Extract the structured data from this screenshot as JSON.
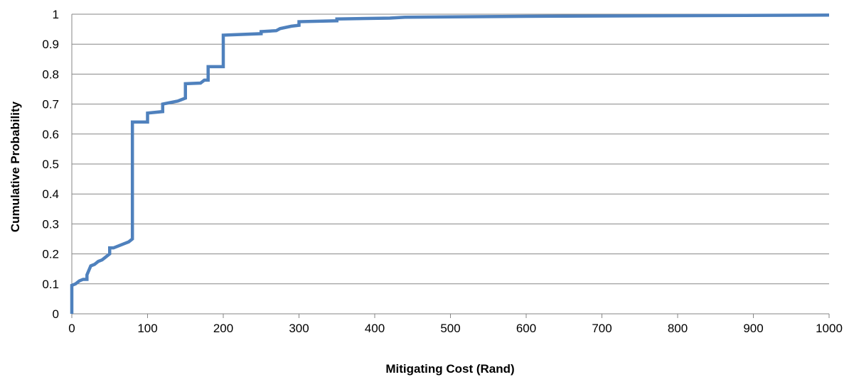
{
  "chart_data": {
    "type": "line",
    "step": true,
    "title": "",
    "xlabel": "Mitigating Cost (Rand)",
    "ylabel": "Cumulative Probability",
    "xlim": [
      0,
      1000
    ],
    "ylim": [
      0,
      1
    ],
    "x_ticks": [
      "0",
      "100",
      "200",
      "300",
      "400",
      "500",
      "600",
      "700",
      "800",
      "900",
      "1000"
    ],
    "y_ticks": [
      "0",
      "0.1",
      "0.2",
      "0.3",
      "0.4",
      "0.5",
      "0.6",
      "0.7",
      "0.8",
      "0.9",
      "1"
    ],
    "grid": "horizontal",
    "legend": "none",
    "series": [
      {
        "color": "#4f81bd",
        "points": [
          [
            0,
            0
          ],
          [
            0,
            0.095
          ],
          [
            5,
            0.1
          ],
          [
            10,
            0.11
          ],
          [
            15,
            0.115
          ],
          [
            20,
            0.115
          ],
          [
            20,
            0.13
          ],
          [
            25,
            0.16
          ],
          [
            30,
            0.165
          ],
          [
            35,
            0.175
          ],
          [
            40,
            0.18
          ],
          [
            45,
            0.19
          ],
          [
            50,
            0.2
          ],
          [
            50,
            0.22
          ],
          [
            55,
            0.22
          ],
          [
            60,
            0.225
          ],
          [
            65,
            0.23
          ],
          [
            70,
            0.235
          ],
          [
            75,
            0.24
          ],
          [
            80,
            0.25
          ],
          [
            80,
            0.64
          ],
          [
            100,
            0.64
          ],
          [
            100,
            0.67
          ],
          [
            120,
            0.675
          ],
          [
            120,
            0.7
          ],
          [
            140,
            0.71
          ],
          [
            145,
            0.715
          ],
          [
            150,
            0.72
          ],
          [
            150,
            0.768
          ],
          [
            170,
            0.77
          ],
          [
            175,
            0.78
          ],
          [
            180,
            0.78
          ],
          [
            180,
            0.825
          ],
          [
            200,
            0.825
          ],
          [
            200,
            0.93
          ],
          [
            250,
            0.935
          ],
          [
            250,
            0.942
          ],
          [
            270,
            0.945
          ],
          [
            275,
            0.952
          ],
          [
            290,
            0.96
          ],
          [
            300,
            0.963
          ],
          [
            300,
            0.975
          ],
          [
            350,
            0.978
          ],
          [
            350,
            0.984
          ],
          [
            420,
            0.987
          ],
          [
            440,
            0.99
          ],
          [
            600,
            0.993
          ],
          [
            800,
            0.995
          ],
          [
            1000,
            0.997
          ]
        ]
      }
    ]
  }
}
